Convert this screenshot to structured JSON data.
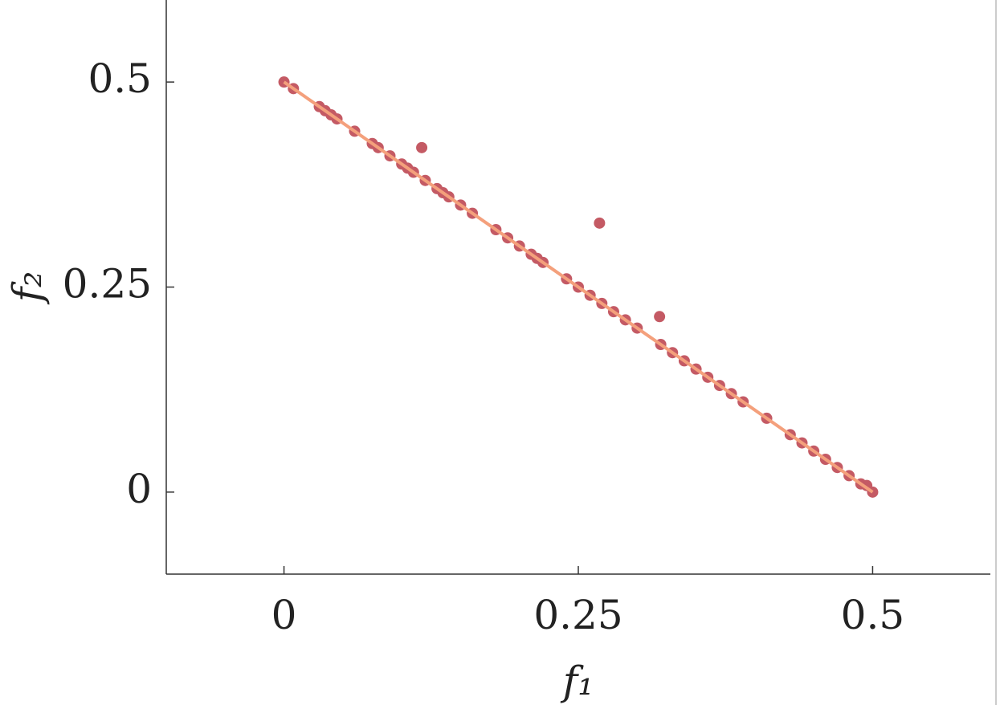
{
  "chart_data": {
    "type": "scatter",
    "xlabel": "f₁",
    "ylabel": "f₂",
    "xlim": [
      -0.1,
      0.6
    ],
    "ylim": [
      -0.1,
      0.6
    ],
    "xticks": [
      0,
      0.25,
      0.5
    ],
    "yticks": [
      0,
      0.25,
      0.5
    ],
    "series": [
      {
        "type": "scatter",
        "color": "#c45a64",
        "x": [
          0,
          0.008,
          0.03,
          0.035,
          0.04,
          0.045,
          0.06,
          0.075,
          0.08,
          0.09,
          0.1,
          0.105,
          0.11,
          0.12,
          0.13,
          0.135,
          0.14,
          0.15,
          0.16,
          0.18,
          0.19,
          0.2,
          0.21,
          0.215,
          0.22,
          0.24,
          0.25,
          0.26,
          0.27,
          0.28,
          0.29,
          0.3,
          0.32,
          0.33,
          0.34,
          0.35,
          0.36,
          0.37,
          0.38,
          0.39,
          0.41,
          0.43,
          0.44,
          0.45,
          0.46,
          0.47,
          0.48,
          0.49,
          0.495,
          0.5,
          0.117,
          0.268,
          0.319
        ],
        "values": [
          0.5,
          0.492,
          0.47,
          0.465,
          0.46,
          0.455,
          0.44,
          0.425,
          0.42,
          0.41,
          0.4,
          0.395,
          0.39,
          0.38,
          0.37,
          0.365,
          0.36,
          0.35,
          0.34,
          0.32,
          0.31,
          0.3,
          0.29,
          0.285,
          0.28,
          0.26,
          0.25,
          0.24,
          0.23,
          0.22,
          0.21,
          0.2,
          0.18,
          0.17,
          0.16,
          0.15,
          0.14,
          0.13,
          0.12,
          0.11,
          0.09,
          0.07,
          0.06,
          0.05,
          0.04,
          0.03,
          0.02,
          0.01,
          0.008,
          0,
          0.42,
          0.328,
          0.214
        ]
      },
      {
        "type": "line",
        "color": "#f4a07c",
        "x": [
          0,
          0.5
        ],
        "values": [
          0.5,
          0
        ]
      }
    ]
  }
}
